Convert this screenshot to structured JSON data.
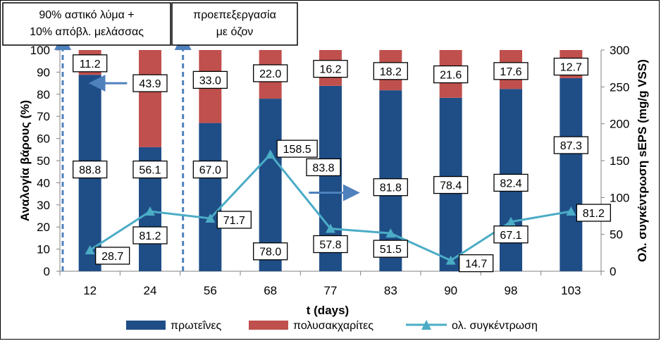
{
  "chart_data": {
    "type": "bar",
    "stacked": true,
    "categories": [
      "12",
      "24",
      "56",
      "68",
      "77",
      "83",
      "90",
      "98",
      "103"
    ],
    "series": [
      {
        "name": "πρωτεΐνες",
        "axis": "left",
        "color": "#1f4e87",
        "values": [
          88.8,
          56.1,
          67.0,
          78.0,
          83.8,
          81.8,
          78.4,
          82.4,
          87.3
        ],
        "labels": [
          "88.8",
          "56.1",
          "67.0",
          "78.0",
          "83.8",
          "81.8",
          "78.4",
          "82.4",
          "87.3"
        ]
      },
      {
        "name": "πολυσακχαρίτες",
        "axis": "left",
        "color": "#c0504d",
        "values": [
          11.2,
          43.9,
          33.0,
          22.0,
          16.2,
          18.2,
          21.6,
          17.6,
          12.7
        ],
        "labels": [
          "11.2",
          "43.9",
          "33.0",
          "22.0",
          "16.2",
          "18.2",
          "21.6",
          "17.6",
          "12.7"
        ]
      },
      {
        "name": "ολ. συγκέντρωση",
        "axis": "right",
        "type": "line",
        "color": "#4bacc6",
        "values": [
          28.7,
          81.2,
          71.7,
          158.5,
          57.8,
          51.5,
          14.7,
          67.1,
          81.2
        ],
        "labels": [
          "28.7",
          "81.2",
          "71.7",
          "158.5",
          "57.8",
          "51.5",
          "14.7",
          "67.1",
          "81.2"
        ]
      }
    ],
    "xlabel": "t (days)",
    "ylabel": "Αναλογία βάρους (%)",
    "y2label": "Ολ. συγκέντρωση sEPS (mg/g VSS)",
    "ylim": [
      0,
      100
    ],
    "y2lim": [
      0,
      300
    ],
    "yticks": [
      "0",
      "10",
      "20",
      "30",
      "40",
      "50",
      "60",
      "70",
      "80",
      "90",
      "100"
    ],
    "y2ticks": [
      "0",
      "50",
      "100",
      "150",
      "200",
      "250",
      "300"
    ],
    "legend_position": "bottom",
    "grid": false,
    "annotations": [
      {
        "lines": [
          "90% αστικό λύμα +",
          "10% απόβλ. μελάσσας"
        ]
      },
      {
        "lines": [
          "προεπεξεργασία",
          "με όζον"
        ]
      }
    ]
  }
}
